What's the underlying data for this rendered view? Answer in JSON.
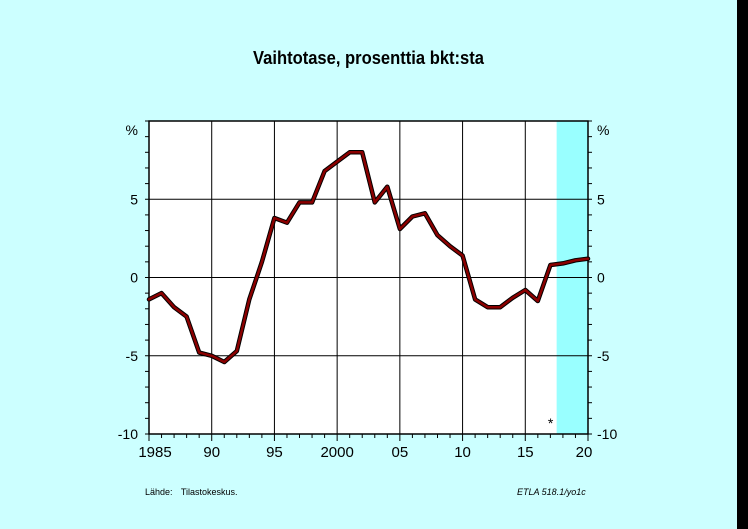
{
  "chart_data": {
    "type": "line",
    "title": "Vaihtotase, prosenttia bkt:sta",
    "ylabel_left": "%",
    "ylabel_right": "%",
    "ylim": [
      -10,
      10
    ],
    "xlim": [
      1985,
      2020
    ],
    "y_ticks": [
      "5",
      "0",
      "-5",
      "-10"
    ],
    "x_ticks": [
      "1985",
      "90",
      "95",
      "2000",
      "05",
      "10",
      "15",
      "20"
    ],
    "forecast_start": 2017.5,
    "forecast_marker": "*",
    "series": [
      {
        "color": "#8b0000",
        "x": [
          1985,
          1986,
          1987,
          1988,
          1989,
          1990,
          1991,
          1992,
          1993,
          1994,
          1995,
          1996,
          1997,
          1998,
          1999,
          2000,
          2001,
          2002,
          2003,
          2004,
          2005,
          2006,
          2007,
          2008,
          2009,
          2010,
          2011,
          2012,
          2013,
          2014,
          2015,
          2016,
          2017,
          2018,
          2019,
          2020
        ],
        "y": [
          -1.4,
          -1.0,
          -1.9,
          -2.5,
          -4.8,
          -5.0,
          -5.4,
          -4.7,
          -1.4,
          1.0,
          3.8,
          3.5,
          4.8,
          4.8,
          6.8,
          7.4,
          8.0,
          8.0,
          4.8,
          5.8,
          3.1,
          3.9,
          4.1,
          2.7,
          2.0,
          1.4,
          -1.4,
          -1.9,
          -1.9,
          -1.3,
          -0.8,
          -1.5,
          0.8,
          0.9,
          1.1,
          1.2
        ]
      }
    ]
  },
  "footer": {
    "source": "Lähde:  Tilastokeskus.",
    "code": "ETLA 518.1/yo1c"
  },
  "colors": {
    "background": "#ccffff",
    "plot": "#ffffff",
    "forecast_band": "#99ffff",
    "line": "#8b0000"
  }
}
